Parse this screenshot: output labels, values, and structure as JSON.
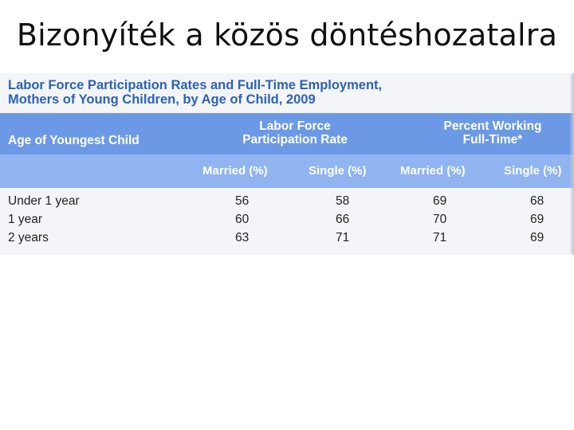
{
  "slide": {
    "title": "Bizonyíték a közös döntéshozatalra"
  },
  "table": {
    "title_line1": "Labor Force Participation Rates and Full-Time Employment,",
    "title_line2": "Mothers of Young Children, by Age of Child, 2009",
    "col_first": "Age of Youngest Child",
    "group1_line1": "Labor Force",
    "group1_line2": "Participation Rate",
    "group2_line1": "Percent Working",
    "group2_line2": "Full-Time*",
    "sub_headers": [
      "Married (%)",
      "Single (%)",
      "Married (%)",
      "Single (%)"
    ],
    "rows": [
      {
        "age": "Under 1 year",
        "lfpr_married": "56",
        "lfpr_single": "58",
        "ft_married": "69",
        "ft_single": "68"
      },
      {
        "age": "1 year",
        "lfpr_married": "60",
        "lfpr_single": "66",
        "ft_married": "70",
        "ft_single": "69"
      },
      {
        "age": "2 years",
        "lfpr_married": "63",
        "lfpr_single": "71",
        "ft_married": "71",
        "ft_single": "69"
      }
    ]
  }
}
